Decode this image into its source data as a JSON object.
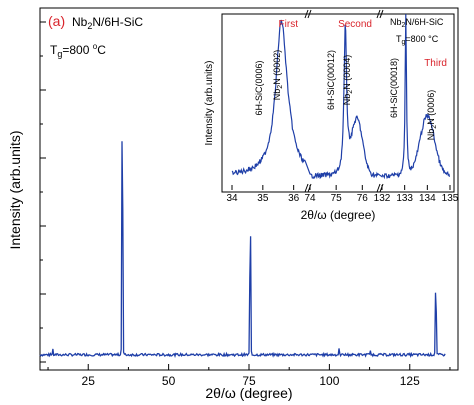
{
  "chart_data": [
    {
      "type": "line",
      "panel_label": "(a)",
      "sample_label": "Nb2N/6H-SiC",
      "growth_temp_label": "Tg=800 °C",
      "xlabel": "2θ/ω (degree)",
      "ylabel": "Intensity (arb.units)",
      "xlim": [
        10,
        140
      ],
      "x_ticks": [
        "25",
        "50",
        "75",
        "100",
        "125"
      ],
      "x_tick_values": [
        25,
        50,
        75,
        100,
        125
      ],
      "y_scale": "log",
      "peaks": [
        {
          "x": 35.6,
          "y": 0.85
        },
        {
          "x": 75.4,
          "y": 0.45
        },
        {
          "x": 133.1,
          "y": 0.25
        }
      ],
      "color": "#1f3fa8"
    },
    {
      "type": "line",
      "kind": "inset",
      "xlabel": "2θ/ω (degree)",
      "ylabel": "Intensity (arb.units)",
      "legend_text": "Nb2N/6H-SiC",
      "legend_temp": "Tg=800 °C",
      "x_ticks": [
        "34",
        "35",
        "36",
        "74",
        "75",
        "76",
        "132",
        "133",
        "134",
        "135"
      ],
      "segments": [
        {
          "name": "First",
          "xlim": [
            34,
            36.5
          ],
          "peaks": [
            {
              "label": "6H-SiC(0006)",
              "x": 35.6
            },
            {
              "label": "Nb2N (0002)",
              "x": 35.8
            }
          ]
        },
        {
          "name": "Second",
          "xlim": [
            74,
            76.8
          ],
          "peaks": [
            {
              "label": "6H-SiC(00012)",
              "x": 75.4
            },
            {
              "label": "Nb2N (0004)",
              "x": 75.8
            }
          ]
        },
        {
          "name": "Third",
          "xlim": [
            132,
            135
          ],
          "peaks": [
            {
              "label": "6H-SiC(00018)",
              "x": 133.0
            },
            {
              "label": "Nb2N (0006)",
              "x": 134.0
            }
          ]
        }
      ],
      "color": "#1f3fa8",
      "segment_label_color": "#d9232b"
    }
  ]
}
